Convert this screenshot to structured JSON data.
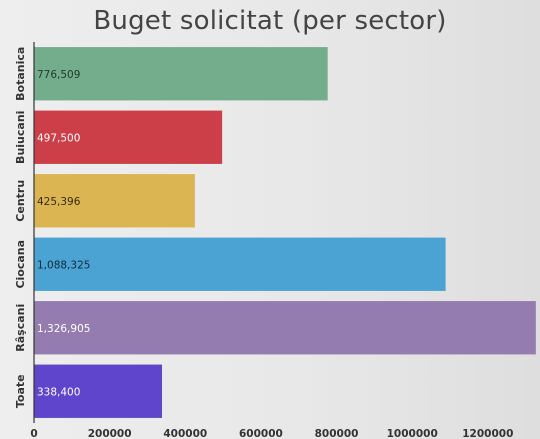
{
  "chart_data": {
    "type": "bar",
    "orientation": "horizontal",
    "title": "Buget solicitat (per sector)",
    "xlabel": "",
    "ylabel": "",
    "categories": [
      "Botanica",
      "Buiucani",
      "Centru",
      "Ciocana",
      "Râşcani",
      "Toate"
    ],
    "values": [
      776509,
      497500,
      425396,
      1088325,
      1326905,
      338400
    ],
    "value_labels": [
      "776,509",
      "497,500",
      "425,396",
      "1,088,325",
      "1,326,905",
      "338,400"
    ],
    "colors": [
      "#74ad8c",
      "#cc3f48",
      "#dbb552",
      "#4ba3d3",
      "#957cb0",
      "#5f44cc"
    ],
    "value_label_colors": [
      "#1e3b2c",
      "#ffffff",
      "#3a2c0a",
      "#0d2c3e",
      "#ffffff",
      "#ffffff"
    ],
    "xticks": [
      0,
      200000,
      400000,
      600000,
      800000,
      1000000,
      1200000
    ],
    "xtick_labels": [
      "0",
      "200000",
      "400000",
      "600000",
      "800000",
      "1000000",
      "1200000"
    ],
    "xlim": [
      0,
      1330000
    ],
    "grid": false,
    "legend": "none"
  }
}
